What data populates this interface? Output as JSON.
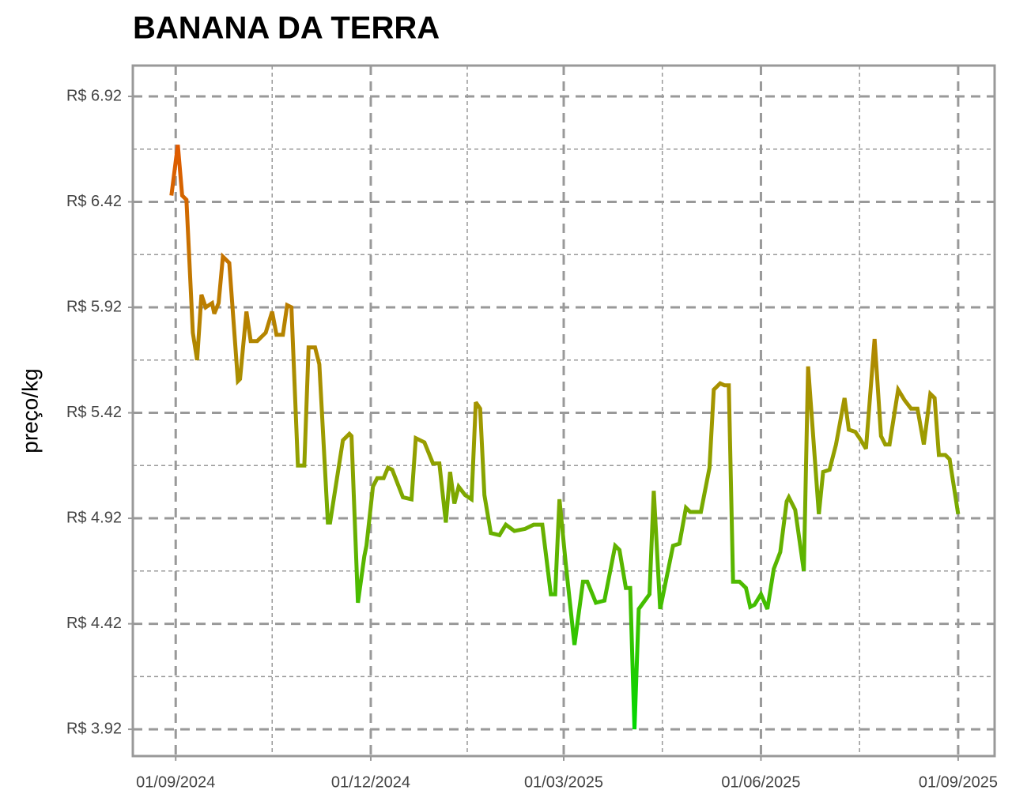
{
  "chart_data": {
    "type": "line",
    "title": "BANANA DA TERRA",
    "y_label": "preço/kg",
    "x": [
      "2024-08-30",
      "2024-09-02",
      "2024-09-04",
      "2024-09-06",
      "2024-09-09",
      "2024-09-11",
      "2024-09-13",
      "2024-09-15",
      "2024-09-18",
      "2024-09-19",
      "2024-09-21",
      "2024-09-23",
      "2024-09-26",
      "2024-09-30",
      "2024-10-01",
      "2024-10-04",
      "2024-10-06",
      "2024-10-09",
      "2024-10-13",
      "2024-10-16",
      "2024-10-18",
      "2024-10-21",
      "2024-10-23",
      "2024-10-25",
      "2024-10-28",
      "2024-10-31",
      "2024-11-02",
      "2024-11-05",
      "2024-11-07",
      "2024-11-11",
      "2024-11-12",
      "2024-11-18",
      "2024-11-21",
      "2024-11-22",
      "2024-11-25",
      "2024-11-28",
      "2024-11-29",
      "2024-12-02",
      "2024-12-04",
      "2024-12-07",
      "2024-12-09",
      "2024-12-11",
      "2024-12-16",
      "2024-12-20",
      "2024-12-22",
      "2024-12-26",
      "2024-12-30",
      "2025-01-02",
      "2025-01-05",
      "2025-01-07",
      "2025-01-09",
      "2025-01-11",
      "2025-01-14",
      "2025-01-17",
      "2025-01-19",
      "2025-01-21",
      "2025-01-23",
      "2025-01-26",
      "2025-01-30",
      "2025-02-02",
      "2025-02-06",
      "2025-02-11",
      "2025-02-15",
      "2025-02-19",
      "2025-02-23",
      "2025-02-25",
      "2025-02-27",
      "2025-03-02",
      "2025-03-06",
      "2025-03-10",
      "2025-03-12",
      "2025-03-16",
      "2025-03-20",
      "2025-03-25",
      "2025-03-27",
      "2025-03-30",
      "2025-04-01",
      "2025-04-03",
      "2025-04-05",
      "2025-04-10",
      "2025-04-12",
      "2025-04-15",
      "2025-04-21",
      "2025-04-24",
      "2025-04-27",
      "2025-04-29",
      "2025-05-04",
      "2025-05-08",
      "2025-05-10",
      "2025-05-13",
      "2025-05-15",
      "2025-05-17",
      "2025-05-19",
      "2025-05-22",
      "2025-05-25",
      "2025-05-27",
      "2025-05-29",
      "2025-06-01",
      "2025-06-04",
      "2025-06-07",
      "2025-06-10",
      "2025-06-13",
      "2025-06-14",
      "2025-06-17",
      "2025-06-21",
      "2025-06-23",
      "2025-06-28",
      "2025-06-30",
      "2025-07-03",
      "2025-07-06",
      "2025-07-10",
      "2025-07-12",
      "2025-07-15",
      "2025-07-17",
      "2025-07-20",
      "2025-07-24",
      "2025-07-27",
      "2025-07-29",
      "2025-07-31",
      "2025-08-04",
      "2025-08-07",
      "2025-08-10",
      "2025-08-13",
      "2025-08-16",
      "2025-08-19",
      "2025-08-21",
      "2025-08-23",
      "2025-08-26",
      "2025-08-28",
      "2025-09-01"
    ],
    "values": [
      6.45,
      6.69,
      6.45,
      6.43,
      5.8,
      5.67,
      5.98,
      5.92,
      5.94,
      5.89,
      5.94,
      6.16,
      6.13,
      5.57,
      5.58,
      5.9,
      5.76,
      5.76,
      5.8,
      5.9,
      5.79,
      5.79,
      5.93,
      5.92,
      5.17,
      5.17,
      5.73,
      5.73,
      5.65,
      4.9,
      4.9,
      5.29,
      5.32,
      5.31,
      4.52,
      4.74,
      4.79,
      5.07,
      5.11,
      5.11,
      5.16,
      5.15,
      5.02,
      5.01,
      5.3,
      5.28,
      5.18,
      5.18,
      4.9,
      5.14,
      4.99,
      5.07,
      5.03,
      5.01,
      5.47,
      5.44,
      5.03,
      4.85,
      4.84,
      4.89,
      4.86,
      4.87,
      4.89,
      4.89,
      4.56,
      4.56,
      5.01,
      4.7,
      4.32,
      4.62,
      4.62,
      4.52,
      4.53,
      4.79,
      4.77,
      4.59,
      4.59,
      3.92,
      4.49,
      4.56,
      5.05,
      4.49,
      4.79,
      4.8,
      4.97,
      4.95,
      4.95,
      5.16,
      5.53,
      5.56,
      5.55,
      5.55,
      4.62,
      4.62,
      4.59,
      4.5,
      4.51,
      4.56,
      4.49,
      4.68,
      4.76,
      5.0,
      5.02,
      4.96,
      4.67,
      5.64,
      4.94,
      5.14,
      5.15,
      5.27,
      5.49,
      5.34,
      5.33,
      5.3,
      5.25,
      5.77,
      5.31,
      5.27,
      5.27,
      5.53,
      5.48,
      5.44,
      5.44,
      5.27,
      5.51,
      5.49,
      5.22,
      5.22,
      5.2,
      4.94
    ],
    "colors": [
      "#00d800",
      "#9c9c00",
      "#e05a00"
    ],
    "xlim": [
      "2024-08-12",
      "2025-09-18"
    ],
    "xticks": [
      {
        "value": "2024-09-01",
        "label": "01/09/2024"
      },
      {
        "value": "2024-12-01",
        "label": "01/12/2024"
      },
      {
        "value": "2025-03-01",
        "label": "01/03/2025"
      },
      {
        "value": "2025-06-01",
        "label": "01/06/2025"
      },
      {
        "value": "2025-09-01",
        "label": "01/09/2025"
      }
    ],
    "minor_xticks": [
      "2024-10-16",
      "2025-01-15",
      "2025-04-16",
      "2025-07-17"
    ],
    "ylim": [
      3.793,
      7.066
    ],
    "yticks": [
      {
        "value": 3.92,
        "label": "R$ 3.92"
      },
      {
        "value": 4.42,
        "label": "R$ 4.42"
      },
      {
        "value": 4.92,
        "label": "R$ 4.92"
      },
      {
        "value": 5.42,
        "label": "R$ 5.42"
      },
      {
        "value": 5.92,
        "label": "R$ 5.92"
      },
      {
        "value": 6.42,
        "label": "R$ 6.42"
      },
      {
        "value": 6.92,
        "label": "R$ 6.92"
      }
    ],
    "minor_yticks": [
      4.17,
      4.67,
      5.17,
      5.67,
      6.17,
      6.67
    ],
    "grid": true
  }
}
